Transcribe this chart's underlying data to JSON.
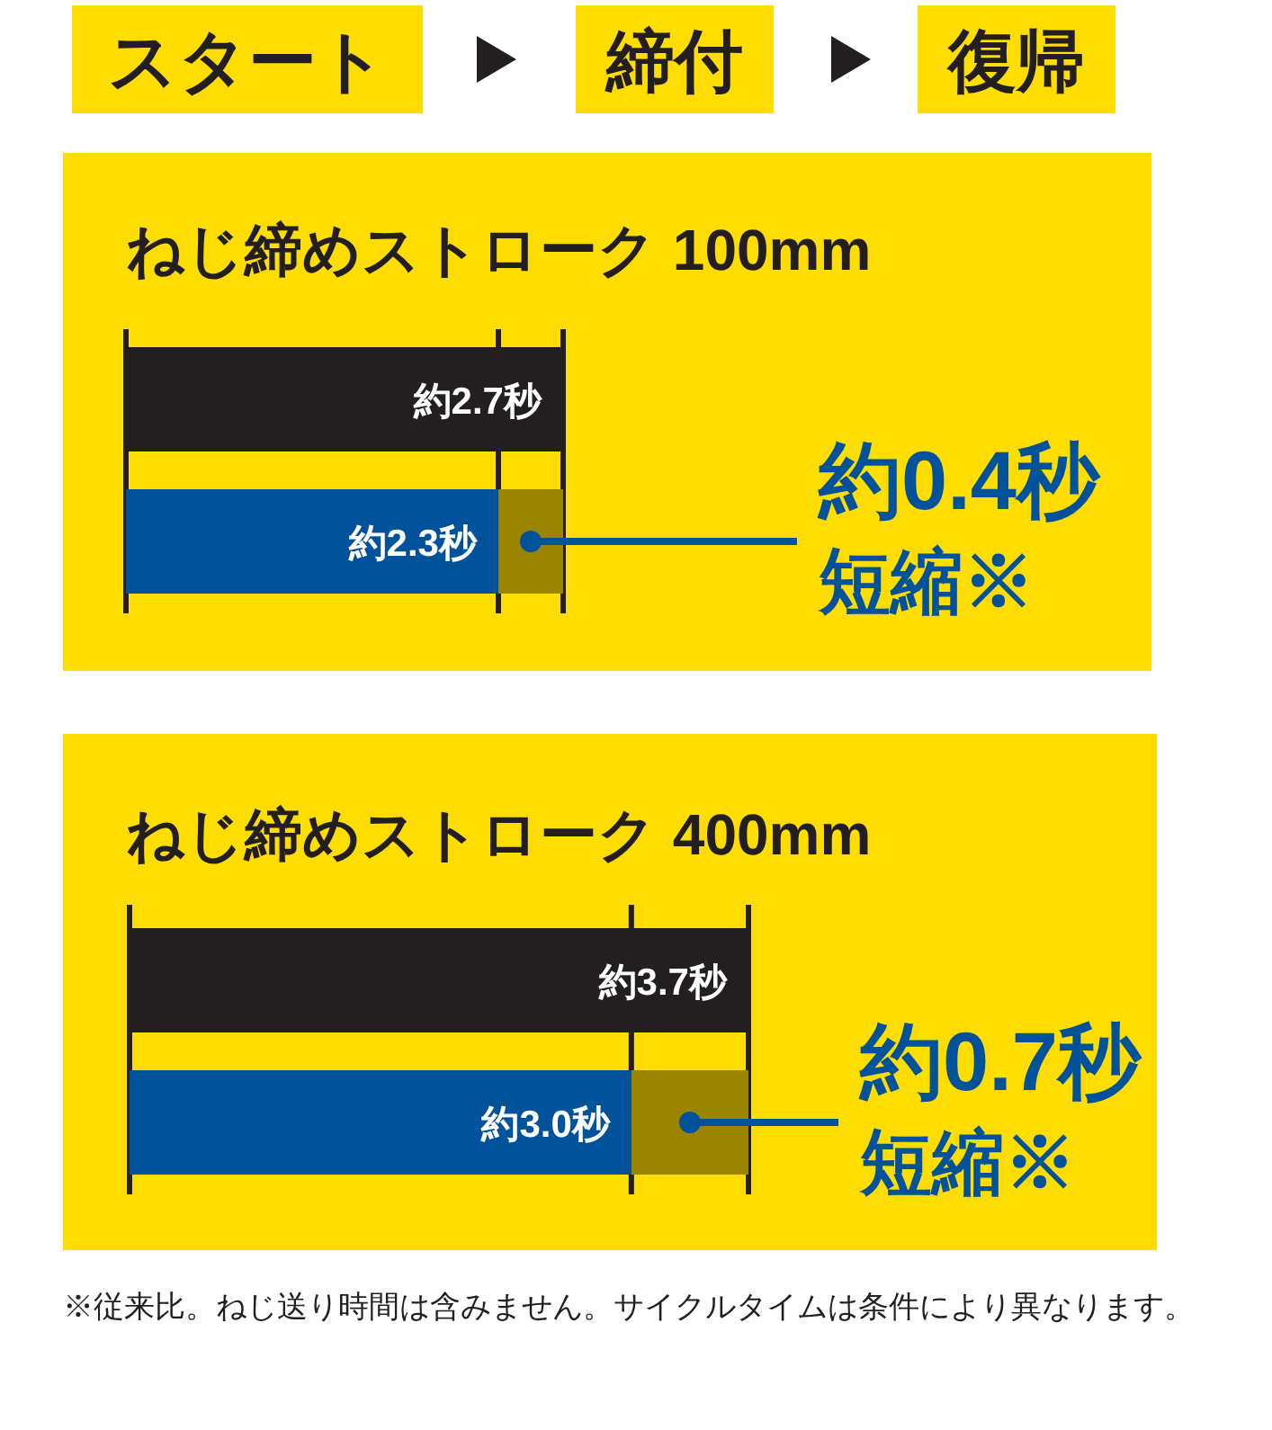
{
  "chart_data": [
    {
      "type": "bar",
      "orientation": "horizontal",
      "stacked": true,
      "title": "ねじ締めストローク 100mm",
      "categories": [
        null,
        null
      ],
      "series": [
        {
          "colors": [
            "#231f20",
            "#00529b"
          ],
          "values": [
            2.7,
            2.3
          ],
          "value_labels": [
            "約2.7秒",
            "約2.3秒"
          ]
        },
        {
          "color": "#9a8400",
          "values": [
            null,
            0.4
          ]
        }
      ],
      "ref_lines": [
        {
          "axis": "x",
          "value": 0
        },
        {
          "axis": "x",
          "value": 2.3
        },
        {
          "axis": "x",
          "value": 2.7
        }
      ],
      "annotations": [
        "スタート",
        "締付",
        "復帰",
        "約0.4秒",
        "短縮※"
      ]
    },
    {
      "type": "bar",
      "orientation": "horizontal",
      "stacked": true,
      "title": "ねじ締めストローク 400mm",
      "categories": [
        null,
        null
      ],
      "series": [
        {
          "colors": [
            "#231f20",
            "#00529b"
          ],
          "values": [
            3.7,
            3.0
          ],
          "value_labels": [
            "約3.7秒",
            "約3.0秒"
          ]
        },
        {
          "color": "#9a8400",
          "values": [
            null,
            0.7
          ]
        }
      ],
      "ref_lines": [
        {
          "axis": "x",
          "value": 0
        },
        {
          "axis": "x",
          "value": 3.0
        },
        {
          "axis": "x",
          "value": 3.7
        }
      ],
      "annotations": [
        "約0.7秒",
        "短縮※",
        "※従来比。ねじ送り時間は含みません。サイクルタイムは条件により異なります。"
      ]
    }
  ]
}
